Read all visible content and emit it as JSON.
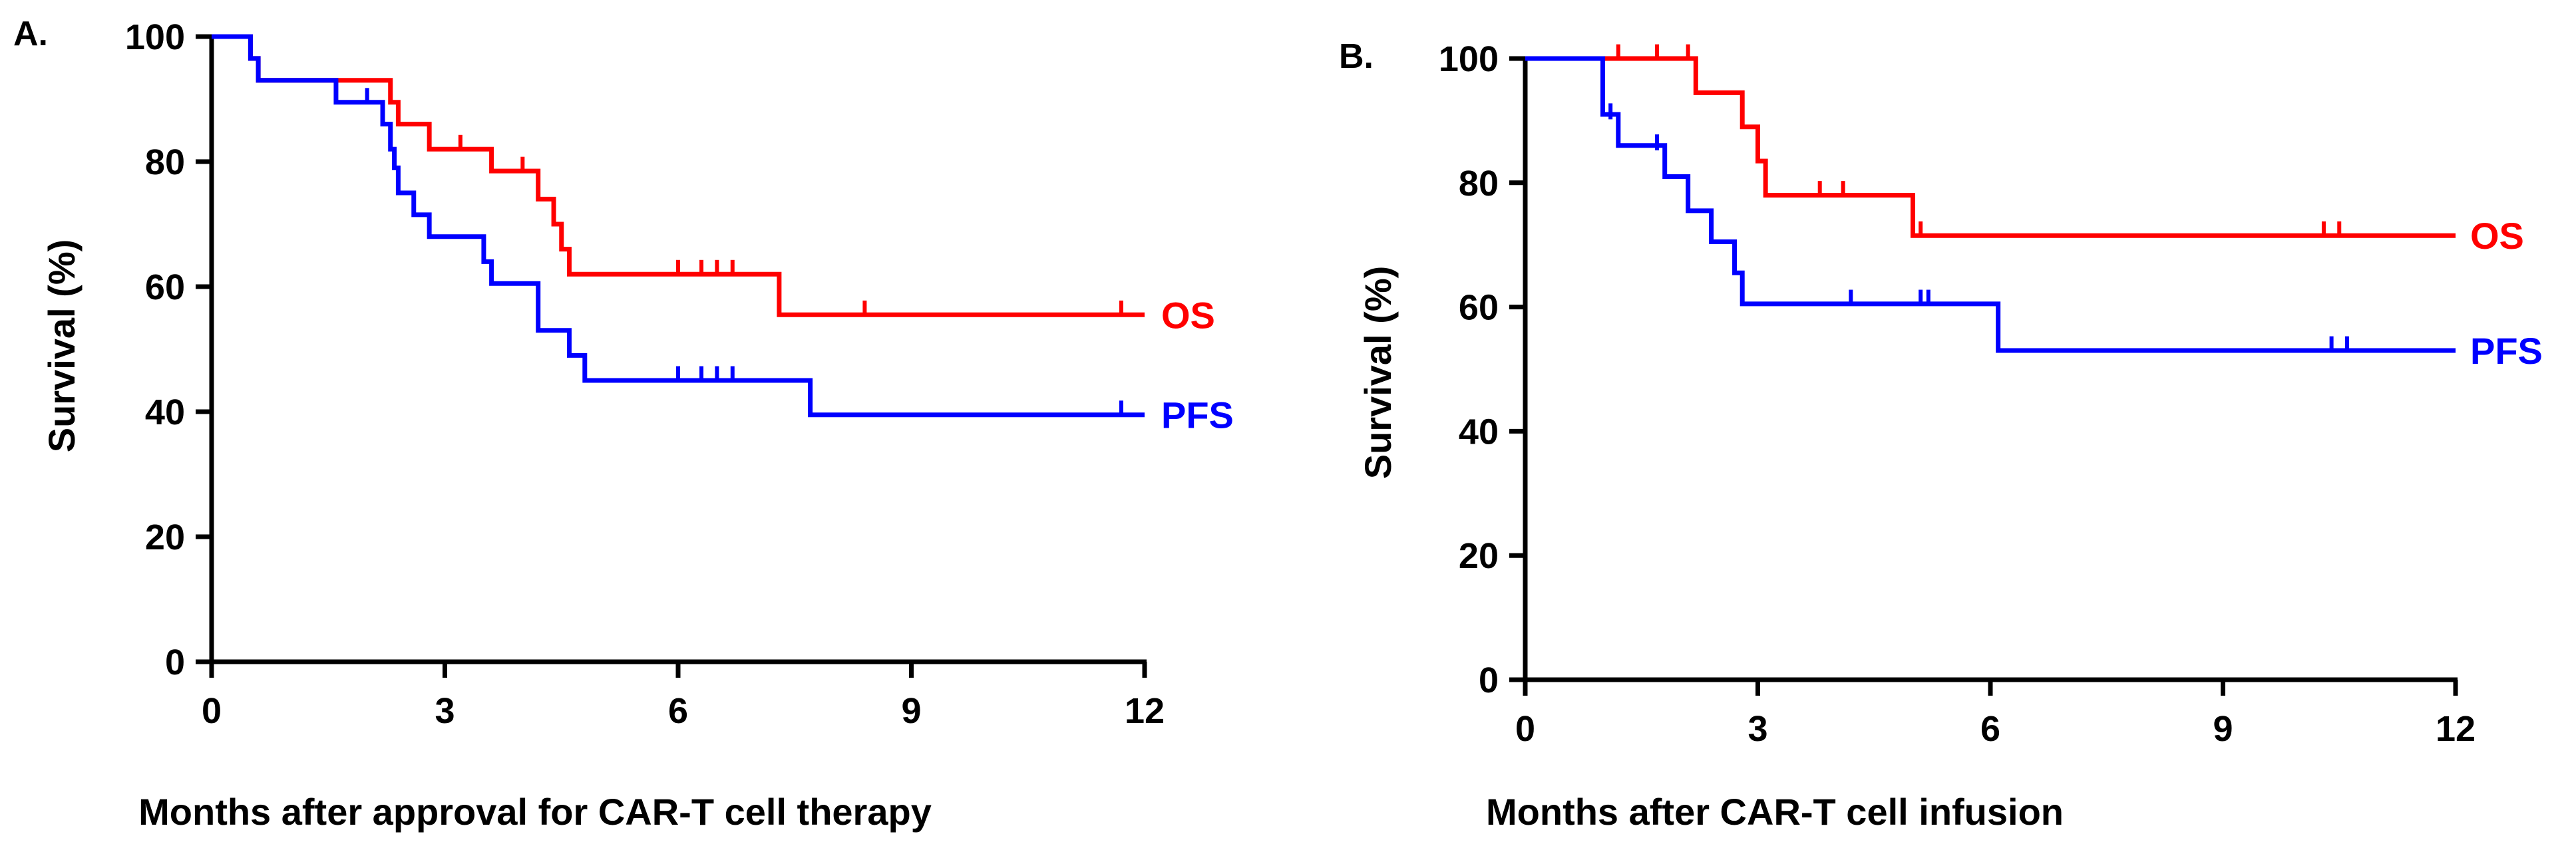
{
  "chart_data": [
    {
      "type": "line",
      "subtype": "kaplan-meier",
      "panel_label": "A.",
      "xlabel": "Months after approval for CAR-T cell therapy",
      "ylabel": "Survival (%)",
      "xlim": [
        0,
        12
      ],
      "ylim": [
        0,
        100
      ],
      "xticks": [
        "0",
        "3",
        "6",
        "9",
        "12"
      ],
      "yticks": [
        "0",
        "20",
        "40",
        "60",
        "80",
        "100"
      ],
      "series": [
        {
          "name": "OS",
          "color": "#ff0000",
          "steps": [
            [
              0,
              100
            ],
            [
              0.5,
              96.5
            ],
            [
              0.6,
              93
            ],
            [
              2.3,
              89.5
            ],
            [
              2.4,
              86
            ],
            [
              2.8,
              82
            ],
            [
              3.6,
              78.5
            ],
            [
              4.2,
              74
            ],
            [
              4.4,
              70
            ],
            [
              4.5,
              66
            ],
            [
              4.6,
              62
            ],
            [
              7.3,
              55.5
            ],
            [
              12,
              55.5
            ]
          ],
          "censor": [
            [
              2.3,
              91
            ],
            [
              3.2,
              83
            ],
            [
              4.0,
              79.5
            ],
            [
              6.0,
              63
            ],
            [
              6.3,
              63
            ],
            [
              6.5,
              63
            ],
            [
              6.7,
              63
            ],
            [
              8.4,
              56.5
            ],
            [
              11.7,
              56.5
            ]
          ]
        },
        {
          "name": "PFS",
          "color": "#0000ff",
          "steps": [
            [
              0,
              100
            ],
            [
              0.5,
              96.5
            ],
            [
              0.6,
              93
            ],
            [
              1.6,
              89.5
            ],
            [
              2.2,
              86
            ],
            [
              2.3,
              82
            ],
            [
              2.35,
              79
            ],
            [
              2.4,
              75
            ],
            [
              2.6,
              71.5
            ],
            [
              2.8,
              68
            ],
            [
              3.5,
              64
            ],
            [
              3.6,
              60.5
            ],
            [
              4.2,
              53
            ],
            [
              4.6,
              49
            ],
            [
              4.8,
              45
            ],
            [
              7.7,
              39.5
            ],
            [
              12,
              39.5
            ]
          ],
          "censor": [
            [
              2.0,
              90.5
            ],
            [
              6.0,
              46
            ],
            [
              6.3,
              46
            ],
            [
              6.5,
              46
            ],
            [
              6.7,
              46
            ],
            [
              11.7,
              40.5
            ]
          ]
        }
      ]
    },
    {
      "type": "line",
      "subtype": "kaplan-meier",
      "panel_label": "B.",
      "xlabel": "Months after CAR-T cell infusion",
      "ylabel": "Survival (%)",
      "xlim": [
        0,
        12
      ],
      "ylim": [
        0,
        100
      ],
      "xticks": [
        "0",
        "3",
        "6",
        "9",
        "12"
      ],
      "yticks": [
        "0",
        "20",
        "40",
        "60",
        "80",
        "100"
      ],
      "series": [
        {
          "name": "OS",
          "color": "#ff0000",
          "steps": [
            [
              0,
              100
            ],
            [
              2.2,
              94.5
            ],
            [
              2.8,
              89
            ],
            [
              3.0,
              83.5
            ],
            [
              3.1,
              78
            ],
            [
              5.0,
              71.5
            ],
            [
              12,
              71.5
            ]
          ],
          "censor": [
            [
              1.2,
              101
            ],
            [
              1.7,
              101
            ],
            [
              2.1,
              101
            ],
            [
              3.8,
              79
            ],
            [
              4.1,
              79
            ],
            [
              5.1,
              72.5
            ],
            [
              10.3,
              72.5
            ],
            [
              10.5,
              72.5
            ]
          ]
        },
        {
          "name": "PFS",
          "color": "#0000ff",
          "steps": [
            [
              0,
              100
            ],
            [
              1.0,
              91
            ],
            [
              1.2,
              86
            ],
            [
              1.8,
              81
            ],
            [
              2.1,
              75.5
            ],
            [
              2.4,
              70.5
            ],
            [
              2.7,
              65.5
            ],
            [
              2.8,
              60.5
            ],
            [
              6.1,
              53
            ],
            [
              12,
              53
            ]
          ],
          "censor": [
            [
              1.1,
              91.5
            ],
            [
              1.7,
              86.5
            ],
            [
              4.2,
              61.5
            ],
            [
              5.1,
              61.5
            ],
            [
              5.2,
              61.5
            ],
            [
              10.4,
              54
            ],
            [
              10.6,
              54
            ]
          ]
        }
      ]
    }
  ]
}
